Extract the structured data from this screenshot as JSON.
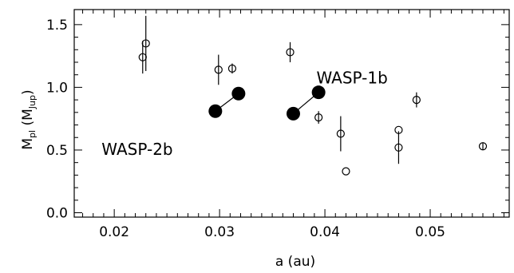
{
  "chart_data": {
    "type": "scatter",
    "title": "",
    "xlabel": "a (au)",
    "ylabel": {
      "main": "M",
      "main_sub": "pl",
      "paren_open": " (M",
      "unit_sub": "Jup",
      "paren_close": ")"
    },
    "xlim": [
      0.0162,
      0.0575
    ],
    "ylim": [
      -0.035,
      1.62
    ],
    "xticks": [
      0.02,
      0.03,
      0.04,
      0.05
    ],
    "xtick_labels": [
      "0.02",
      "0.03",
      "0.04",
      "0.05"
    ],
    "yticks": [
      0.0,
      0.5,
      1.0,
      1.5
    ],
    "ytick_labels": [
      "0.0",
      "0.5",
      "1.0",
      "1.5"
    ],
    "grid": false,
    "series": [
      {
        "marker": "open-circle",
        "points": [
          {
            "x": 0.0227,
            "y": 1.24,
            "err": 0.13
          },
          {
            "x": 0.023,
            "y": 1.35,
            "err": 0.22
          },
          {
            "x": 0.0299,
            "y": 1.14,
            "err": 0.12
          },
          {
            "x": 0.0312,
            "y": 1.15,
            "err": 0.04
          },
          {
            "x": 0.0367,
            "y": 1.28,
            "err": 0.08
          },
          {
            "x": 0.0394,
            "y": 0.76,
            "err": 0.05
          },
          {
            "x": 0.0415,
            "y": 0.63,
            "err": 0.14
          },
          {
            "x": 0.042,
            "y": 0.33,
            "err": 0.0
          },
          {
            "x": 0.047,
            "y": 0.66,
            "err": 0.0
          },
          {
            "x": 0.047,
            "y": 0.52,
            "err": 0.13
          },
          {
            "x": 0.0487,
            "y": 0.9,
            "err": 0.06
          },
          {
            "x": 0.055,
            "y": 0.53,
            "err": 0.03
          }
        ]
      },
      {
        "marker": "filled-circle",
        "label": "WASP-2b",
        "points": [
          {
            "x": 0.0296,
            "y": 0.81
          },
          {
            "x": 0.0318,
            "y": 0.95
          }
        ]
      },
      {
        "marker": "filled-circle",
        "label": "WASP-1b",
        "points": [
          {
            "x": 0.037,
            "y": 0.79
          },
          {
            "x": 0.0394,
            "y": 0.96
          }
        ]
      }
    ],
    "annotations": [
      {
        "text": "WASP-1b",
        "x": 0.0392,
        "y": 1.03
      },
      {
        "text": "WASP-2b",
        "x": 0.0188,
        "y": 0.46
      }
    ]
  }
}
